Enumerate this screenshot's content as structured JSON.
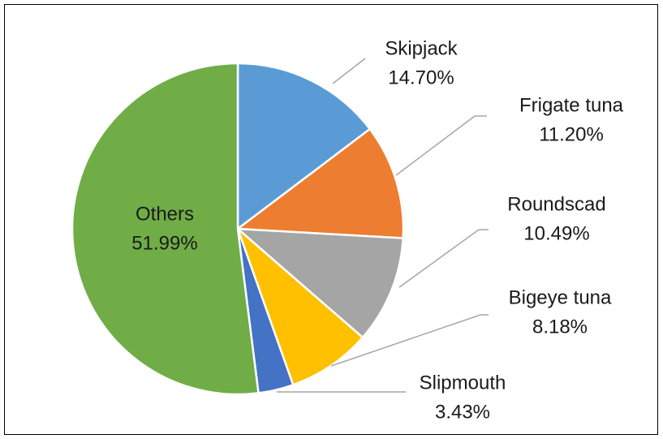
{
  "chart_data": {
    "type": "pie",
    "title": "",
    "slices": [
      {
        "name": "Skipjack",
        "value": 14.7,
        "label": "14.70%",
        "color": "#5B9BD5"
      },
      {
        "name": "Frigate tuna",
        "value": 11.2,
        "label": "11.20%",
        "color": "#ED7D31"
      },
      {
        "name": "Roundscad",
        "value": 10.49,
        "label": "10.49%",
        "color": "#A5A5A5"
      },
      {
        "name": "Bigeye tuna",
        "value": 8.18,
        "label": "8.18%",
        "color": "#FFC000"
      },
      {
        "name": "Slipmouth",
        "value": 3.43,
        "label": "3.43%",
        "color": "#4472C4"
      },
      {
        "name": "Others",
        "value": 51.99,
        "label": "51.99%",
        "color": "#70AD47"
      }
    ],
    "start_angle": "12 o'clock",
    "direction": "clockwise",
    "legend": "none",
    "data_labels": "category name and percentage, outside with leader lines (Others inside)"
  }
}
